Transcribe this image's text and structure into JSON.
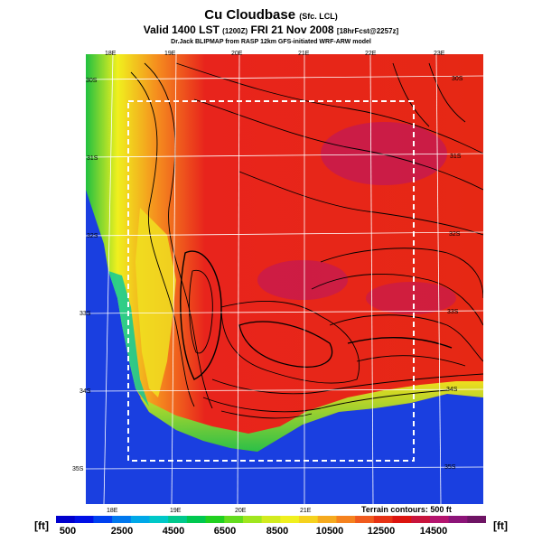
{
  "title": "Cu Cloudbase",
  "title_suffix": "(Sfc. LCL)",
  "subtitle": "Valid 1400 LST",
  "subtitle_code": "(1200Z)",
  "subtitle_date": "FRI 21 Nov 2008",
  "subtitle_forecast": "[18hrFcst@2257z]",
  "credit": "Dr.Jack BLIPMAP from RASP 12km GFS-initiated WRF-ARW model",
  "terrain_note": "Terrain contours: 500 ft",
  "unit_label": "[ft]",
  "colorbar": {
    "labels": [
      "500",
      "2500",
      "4500",
      "6500",
      "8500",
      "10500",
      "12500",
      "14500"
    ],
    "colors": [
      "#0000cd",
      "#0010e6",
      "#0040f0",
      "#0078ee",
      "#00a8e8",
      "#00c8c8",
      "#00c88c",
      "#00c850",
      "#20d020",
      "#64dc1e",
      "#a0e61e",
      "#d2eb1e",
      "#f0f01e",
      "#f5d21e",
      "#f5aa1e",
      "#f5821e",
      "#f05a1e",
      "#e63214",
      "#dc140f",
      "#c8143c",
      "#b4146e",
      "#8c1478",
      "#6e1464"
    ]
  },
  "lon_labels": [
    "18E",
    "19E",
    "20E",
    "21E",
    "22E",
    "23E"
  ],
  "lat_labels": [
    "30S",
    "31S",
    "32S",
    "33S",
    "34S",
    "35S"
  ],
  "colors": {
    "ocean": "#1a3fe0",
    "inland": "#e8241c"
  }
}
